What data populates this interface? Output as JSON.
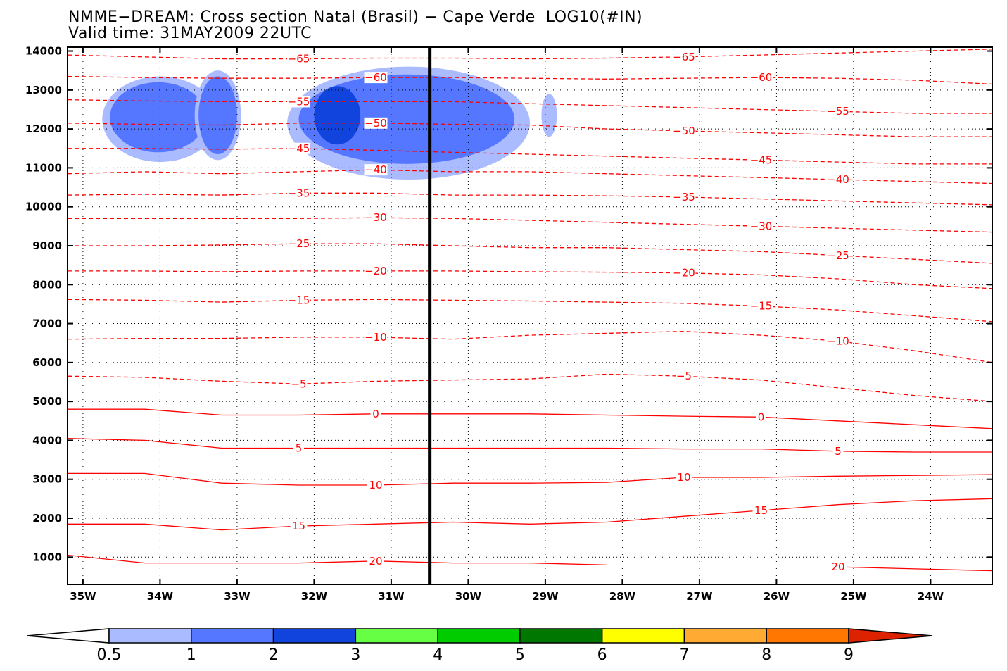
{
  "title_line1": "NMME−DREAM: Cross section Natal (Brasil) − Cape Verde  LOG10(#IN)",
  "title_line2": "Valid time: 31MAY2009 22UTC",
  "chart_data": {
    "type": "contour",
    "title": "NMME−DREAM: Cross section Natal (Brasil) − Cape Verde  LOG10(#IN)",
    "subtitle": "Valid time: 31MAY2009 22UTC",
    "xlabel": "",
    "ylabel": "",
    "x_ticks": [
      "35W",
      "34W",
      "33W",
      "32W",
      "31W",
      "30W",
      "29W",
      "28W",
      "27W",
      "26W",
      "25W",
      "24W"
    ],
    "x_tick_values": [
      -35,
      -34,
      -33,
      -32,
      -31,
      -30,
      -29,
      -28,
      -27,
      -26,
      -25,
      -24
    ],
    "xlim": [
      -35.2,
      -23.2
    ],
    "y_ticks": [
      "1000",
      "2000",
      "3000",
      "4000",
      "5000",
      "6000",
      "7000",
      "8000",
      "9000",
      "10000",
      "11000",
      "12000",
      "13000",
      "14000"
    ],
    "y_tick_values": [
      1000,
      2000,
      3000,
      4000,
      5000,
      6000,
      7000,
      8000,
      9000,
      10000,
      11000,
      12000,
      13000,
      14000
    ],
    "ylim": [
      300,
      14100
    ],
    "grid": true,
    "vertical_marker_x": -30.5,
    "temperature_contours": [
      {
        "label": "-65",
        "y": [
          13900,
          13850,
          13800,
          13800,
          13820,
          13820,
          13800,
          13820,
          13850,
          13900,
          13950,
          14000,
          14050
        ]
      },
      {
        "label": "-60",
        "y": [
          13350,
          13320,
          13300,
          13300,
          13320,
          13320,
          13300,
          13280,
          13300,
          13320,
          13300,
          13250,
          13150
        ]
      },
      {
        "label": "-55",
        "y": [
          12750,
          12720,
          12700,
          12700,
          12700,
          12700,
          12650,
          12600,
          12550,
          12500,
          12450,
          12400,
          12400
        ]
      },
      {
        "label": "-50",
        "y": [
          12150,
          12120,
          12100,
          12150,
          12150,
          12120,
          12100,
          12000,
          11950,
          11900,
          11850,
          11800,
          11800
        ]
      },
      {
        "label": "-45",
        "y": [
          11500,
          11500,
          11480,
          11500,
          11450,
          11400,
          11350,
          11300,
          11250,
          11200,
          11150,
          11100,
          11100
        ]
      },
      {
        "label": "-40",
        "y": [
          10850,
          10900,
          10850,
          10900,
          10950,
          10900,
          10900,
          10850,
          10800,
          10750,
          10700,
          10650,
          10600
        ]
      },
      {
        "label": "-35",
        "y": [
          10300,
          10320,
          10300,
          10350,
          10350,
          10300,
          10300,
          10280,
          10250,
          10200,
          10150,
          10100,
          10050
        ]
      },
      {
        "label": "-30",
        "y": [
          9700,
          9700,
          9700,
          9700,
          9720,
          9700,
          9650,
          9600,
          9550,
          9500,
          9450,
          9400,
          9350
        ]
      },
      {
        "label": "-25",
        "y": [
          9000,
          9000,
          9020,
          9050,
          9050,
          9000,
          8950,
          8950,
          8900,
          8850,
          8750,
          8650,
          8550
        ]
      },
      {
        "label": "-20",
        "y": [
          8350,
          8350,
          8330,
          8350,
          8350,
          8350,
          8330,
          8320,
          8300,
          8250,
          8150,
          8000,
          7900
        ]
      },
      {
        "label": "-15",
        "y": [
          7620,
          7600,
          7550,
          7600,
          7620,
          7600,
          7580,
          7550,
          7520,
          7450,
          7350,
          7200,
          7050
        ]
      },
      {
        "label": "-10",
        "y": [
          6600,
          6620,
          6620,
          6650,
          6650,
          6600,
          6700,
          6750,
          6800,
          6700,
          6550,
          6300,
          6000
        ]
      },
      {
        "label": "-5",
        "y": [
          5650,
          5620,
          5520,
          5450,
          5520,
          5550,
          5580,
          5700,
          5650,
          5550,
          5350,
          5150,
          5000
        ]
      },
      {
        "label": "0",
        "y": [
          4800,
          4800,
          4650,
          4650,
          4680,
          4680,
          4680,
          4650,
          4620,
          4600,
          4500,
          4400,
          4300
        ]
      },
      {
        "label": "5",
        "y": [
          4050,
          4000,
          3800,
          3800,
          3800,
          3800,
          3800,
          3800,
          3780,
          3780,
          3720,
          3700,
          3700
        ]
      },
      {
        "label": "10",
        "y": [
          3150,
          3150,
          2900,
          2850,
          2850,
          2900,
          2900,
          2920,
          3050,
          3050,
          3080,
          3100,
          3120
        ]
      },
      {
        "label": "15",
        "y": [
          1850,
          1850,
          1700,
          1800,
          1850,
          1900,
          1850,
          1900,
          2050,
          2200,
          2350,
          2450,
          2500
        ]
      },
      {
        "label": "20",
        "y": [
          1050,
          850,
          850,
          850,
          900,
          850,
          850,
          800,
          null,
          null,
          750,
          700,
          650
        ]
      }
    ],
    "shaded_levels": [
      0.5,
      1,
      2,
      3,
      4,
      5,
      6,
      7,
      8,
      9
    ],
    "shaded_colors": [
      "#ffffff",
      "#aabbff",
      "#5577ff",
      "#1144dd",
      "#66ff44",
      "#00cc00",
      "#007700",
      "#ffff00",
      "#ffaa33",
      "#ff7700",
      "#dd2200"
    ],
    "shaded_regions": [
      {
        "level": 0.5,
        "x_range": [
          -34.75,
          -33.25
        ],
        "y_range": [
          11150,
          13350
        ]
      },
      {
        "level": 1,
        "x_range": [
          -34.65,
          -33.4
        ],
        "y_range": [
          11400,
          13200
        ]
      },
      {
        "level": 0.5,
        "x_range": [
          -33.55,
          -32.95
        ],
        "y_range": [
          11200,
          13500
        ]
      },
      {
        "level": 1,
        "x_range": [
          -33.5,
          -33.0
        ],
        "y_range": [
          11350,
          13350
        ]
      },
      {
        "level": 0.5,
        "x_range": [
          -32.35,
          -29.2
        ],
        "y_range": [
          10700,
          13600
        ]
      },
      {
        "level": 1,
        "x_range": [
          -32.2,
          -29.4
        ],
        "y_range": [
          11100,
          13400
        ]
      },
      {
        "level": 2,
        "x_range": [
          -32.0,
          -31.4
        ],
        "y_range": [
          11600,
          13100
        ]
      },
      {
        "level": 0.5,
        "x_range": [
          -29.05,
          -28.85
        ],
        "y_range": [
          11800,
          12900
        ]
      }
    ],
    "colorbar": {
      "orientation": "horizontal",
      "labels": [
        "0.5",
        "1",
        "2",
        "3",
        "4",
        "5",
        "6",
        "7",
        "8",
        "9"
      ]
    }
  }
}
